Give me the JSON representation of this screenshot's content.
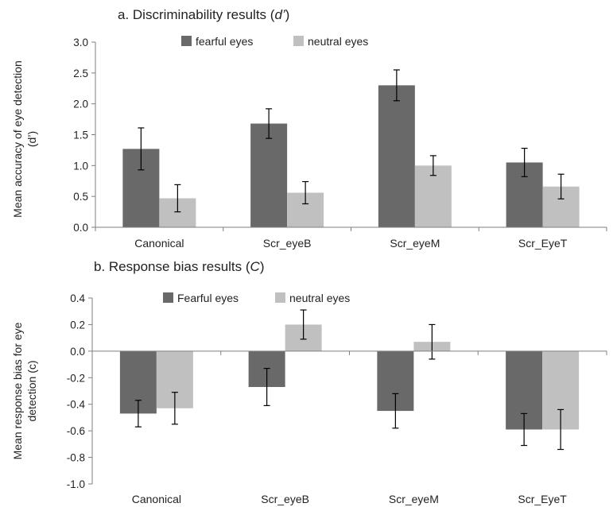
{
  "chart_data": [
    {
      "type": "bar",
      "title_prefix": "a. Discriminability results (",
      "title_italic": "d’",
      "title_suffix": ")",
      "ylabel_line1": "Mean accuracy of eye detection",
      "ylabel_line2": "(d’)",
      "ylim": [
        0.0,
        3.0
      ],
      "yticks": [
        "0.0",
        "0.5",
        "1.0",
        "1.5",
        "2.0",
        "2.5",
        "3.0"
      ],
      "ytick_values": [
        0.0,
        0.5,
        1.0,
        1.5,
        2.0,
        2.5,
        3.0
      ],
      "categories": [
        "Canonical",
        "Scr_eyeB",
        "Scr_eyeM",
        "Scr_EyeT"
      ],
      "legend_placement": "top",
      "grid": false,
      "series": [
        {
          "name": "fearful eyes",
          "color": "#696969",
          "values": [
            1.27,
            1.68,
            2.3,
            1.05
          ],
          "errors": [
            0.34,
            0.24,
            0.25,
            0.23
          ]
        },
        {
          "name": "neutral eyes",
          "color": "#c0c0c0",
          "values": [
            0.47,
            0.56,
            1.0,
            0.66
          ],
          "errors": [
            0.22,
            0.18,
            0.16,
            0.2
          ]
        }
      ]
    },
    {
      "type": "bar",
      "title_prefix": "b. Response bias results (",
      "title_italic": "C",
      "title_suffix": ")",
      "ylabel_line1": "Mean response bias for eye",
      "ylabel_line2": "detection (c)",
      "ylim": [
        -1.0,
        0.4
      ],
      "yticks": [
        "-1.0",
        "-0.8",
        "-0.6",
        "-0.4",
        "-0.2",
        "0.0",
        "0.2",
        "0.4"
      ],
      "ytick_values": [
        -1.0,
        -0.8,
        -0.6,
        -0.4,
        -0.2,
        0.0,
        0.2,
        0.4
      ],
      "categories": [
        "Canonical",
        "Scr_eyeB",
        "Scr_eyeM",
        "Scr_EyeT"
      ],
      "legend_placement": "top",
      "grid": false,
      "series": [
        {
          "name": "Fearful eyes",
          "color": "#696969",
          "values": [
            -0.47,
            -0.27,
            -0.45,
            -0.59
          ],
          "errors": [
            0.1,
            0.14,
            0.13,
            0.12
          ]
        },
        {
          "name": "neutral eyes",
          "color": "#c0c0c0",
          "values": [
            -0.43,
            0.2,
            0.07,
            -0.59
          ],
          "errors": [
            0.12,
            0.11,
            0.13,
            0.15
          ]
        }
      ]
    }
  ]
}
